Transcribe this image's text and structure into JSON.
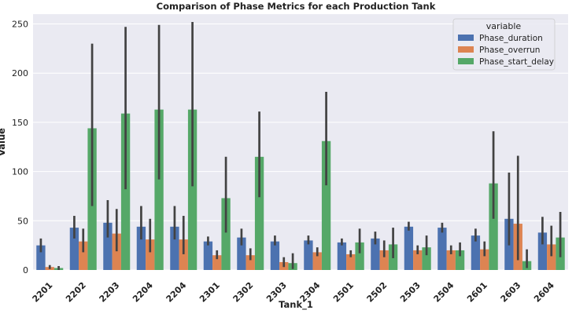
{
  "chart_data": {
    "type": "bar",
    "title": "Comparison of Phase Metrics for each Production Tank",
    "xlabel": "Tank_1",
    "ylabel": "Value",
    "ylim": [
      0,
      260
    ],
    "yticks": [
      0,
      50,
      100,
      150,
      200,
      250
    ],
    "grid": true,
    "legend": {
      "title": "variable",
      "position": "top-right"
    },
    "categories": [
      "2201",
      "2202",
      "2203",
      "2204",
      "2204",
      "2301",
      "2302",
      "2303",
      "2304",
      "2501",
      "2502",
      "2503",
      "2504",
      "2601",
      "2603",
      "2604"
    ],
    "series": [
      {
        "name": "Phase_duration",
        "color": "#4c72b0",
        "values": [
          25,
          43,
          48,
          44,
          44,
          29,
          33,
          29,
          30,
          28,
          32,
          44,
          43,
          35,
          52,
          38
        ],
        "err_low": [
          18,
          32,
          33,
          31,
          31,
          25,
          25,
          25,
          26,
          25,
          26,
          40,
          38,
          29,
          25,
          26
        ],
        "err_high": [
          32,
          55,
          71,
          65,
          65,
          34,
          42,
          35,
          35,
          32,
          39,
          49,
          48,
          42,
          99,
          54
        ]
      },
      {
        "name": "Phase_overrun",
        "color": "#dd8452",
        "values": [
          3,
          29,
          37,
          31,
          31,
          15,
          15,
          8,
          18,
          16,
          20,
          20,
          20,
          21,
          47,
          26
        ],
        "err_low": [
          1,
          18,
          19,
          18,
          16,
          11,
          10,
          3,
          14,
          13,
          13,
          16,
          16,
          14,
          10,
          14
        ],
        "err_high": [
          5,
          42,
          62,
          52,
          55,
          20,
          22,
          13,
          23,
          20,
          30,
          25,
          25,
          29,
          116,
          45
        ]
      },
      {
        "name": "Phase_start_delay",
        "color": "#55a868",
        "values": [
          2,
          144,
          159,
          163,
          163,
          73,
          115,
          7,
          131,
          28,
          26,
          23,
          20,
          88,
          9,
          33
        ],
        "err_low": [
          0,
          65,
          82,
          92,
          85,
          38,
          74,
          1,
          86,
          17,
          12,
          15,
          14,
          52,
          2,
          13
        ],
        "err_high": [
          4,
          230,
          247,
          249,
          252,
          115,
          161,
          17,
          181,
          42,
          43,
          35,
          28,
          141,
          21,
          59
        ]
      }
    ]
  }
}
